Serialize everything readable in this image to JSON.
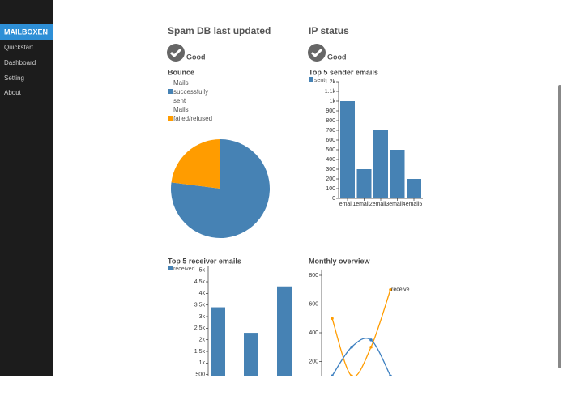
{
  "sidebar": {
    "brand": "MAILBOXEN",
    "items": [
      "Quickstart",
      "Dashboard",
      "Setting",
      "About"
    ]
  },
  "spam_status": {
    "title": "Spam DB last updated",
    "status": "Good"
  },
  "ip_status": {
    "title": "IP status",
    "status": "Good"
  },
  "bounce": {
    "type": "pie",
    "title": "Bounce",
    "categories": [
      "Mails successfully sent",
      "Mails failed/refused"
    ],
    "values": [
      77,
      23
    ],
    "colors": [
      "#4682b4",
      "#ff9c00"
    ]
  },
  "sender": {
    "type": "bar",
    "title": "Top 5 sender emails",
    "series": [
      {
        "name": "sent",
        "color": "#4682b4",
        "values": [
          1000,
          300,
          700,
          500,
          200
        ]
      }
    ],
    "categories": [
      "email1",
      "email2",
      "email3",
      "email4",
      "email5"
    ],
    "ylim": [
      0,
      1200
    ],
    "yticks": [
      0,
      100,
      200,
      300,
      400,
      500,
      600,
      700,
      800,
      900,
      {
        "value": 1000,
        "label": "1k"
      },
      {
        "value": 1100,
        "label": "1.1k"
      },
      {
        "value": 1200,
        "label": "1.2k"
      }
    ]
  },
  "receiver": {
    "type": "bar",
    "title": "Top 5 receiver emails",
    "series": [
      {
        "name": "received",
        "color": "#4682b4",
        "values": [
          3400,
          2300,
          4300
        ]
      }
    ],
    "categories": [
      null,
      null,
      null
    ],
    "ylim": [
      0,
      5200
    ],
    "yticks": [
      500,
      {
        "value": 1000,
        "label": "1k"
      },
      {
        "value": 1500,
        "label": "1.5k"
      },
      {
        "value": 2000,
        "label": "2k"
      },
      {
        "value": 2500,
        "label": "2.5k"
      },
      {
        "value": 3000,
        "label": "3k"
      },
      {
        "value": 3500,
        "label": "3.5k"
      },
      {
        "value": 4000,
        "label": "4k"
      },
      {
        "value": 4500,
        "label": "4.5k"
      },
      {
        "value": 5000,
        "label": "5k"
      }
    ]
  },
  "monthly": {
    "type": "line",
    "title": "Monthly overview",
    "categories": [
      null,
      null,
      null,
      null
    ],
    "series": [
      {
        "name": "receive",
        "color": "#ff9c00",
        "values": [
          500,
          100,
          300,
          700
        ]
      },
      {
        "color": "#3c7fc0",
        "values": [
          100,
          300,
          350,
          100
        ]
      }
    ],
    "ylim": [
      0,
      840
    ],
    "yticks": [
      200,
      400,
      600,
      800
    ]
  }
}
